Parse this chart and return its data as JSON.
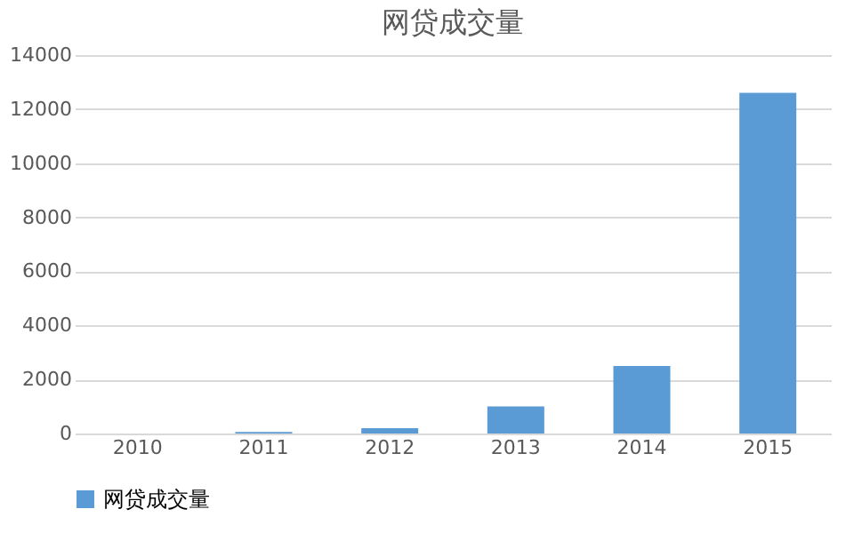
{
  "chart_data": {
    "type": "bar",
    "title": "网贷成交量",
    "categories": [
      "2010",
      "2011",
      "2012",
      "2013",
      "2014",
      "2015"
    ],
    "series": [
      {
        "name": "网贷成交量",
        "color": "#5b9bd5",
        "values": [
          null,
          60,
          200,
          1000,
          2500,
          12600
        ]
      }
    ],
    "ylim": [
      0,
      14000
    ],
    "yticks": [
      0,
      2000,
      4000,
      6000,
      8000,
      10000,
      12000,
      14000
    ],
    "grid": "y",
    "legend": "bottom"
  }
}
